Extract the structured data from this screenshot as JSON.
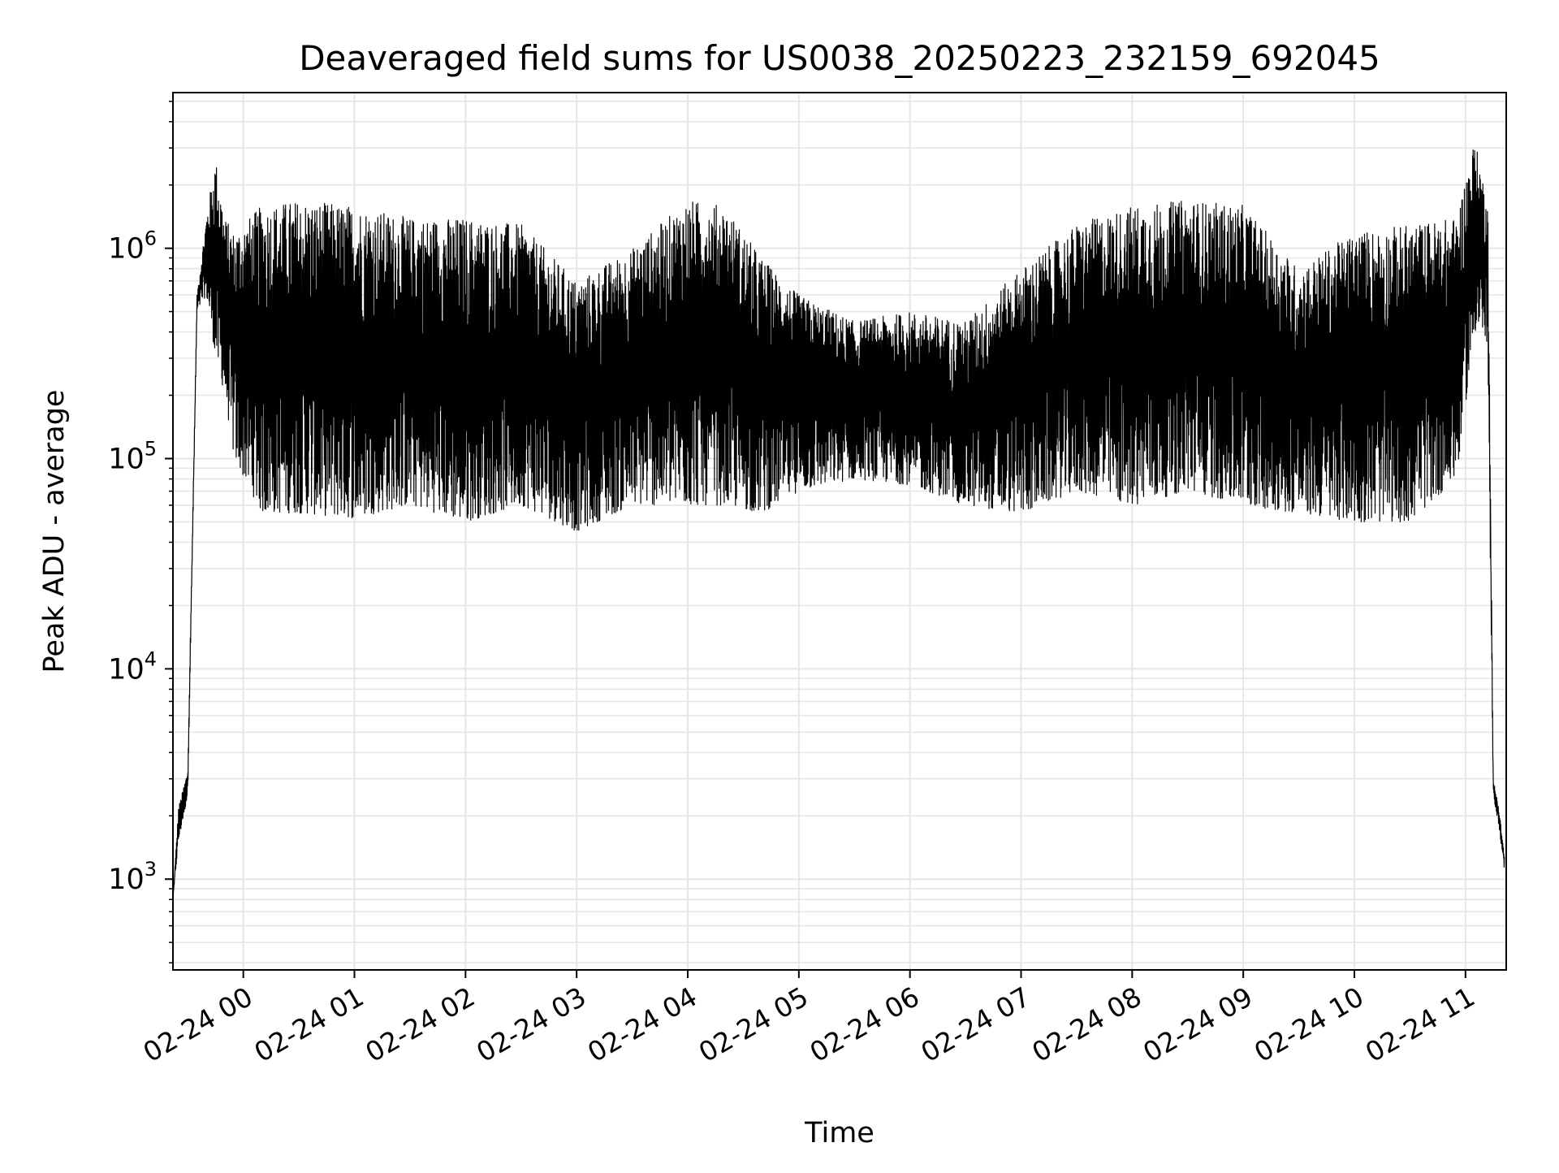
{
  "chart_data": {
    "type": "line",
    "title": "Deaveraged field sums for US0038_20250223_232159_692045",
    "xlabel": "Time",
    "ylabel": "Peak ADU - average",
    "yscale": "log",
    "xlim": [
      "2025-02-23 23:22",
      "2025-02-24 11:22"
    ],
    "ylim": [
      370,
      5500000
    ],
    "grid": true,
    "line_color": "#000000",
    "grid_color": "#e6e6e6",
    "x_ticks": [
      {
        "time": "2025-02-24 00:00",
        "label": "02-24 00"
      },
      {
        "time": "2025-02-24 01:00",
        "label": "02-24 01"
      },
      {
        "time": "2025-02-24 02:00",
        "label": "02-24 02"
      },
      {
        "time": "2025-02-24 03:00",
        "label": "02-24 03"
      },
      {
        "time": "2025-02-24 04:00",
        "label": "02-24 04"
      },
      {
        "time": "2025-02-24 05:00",
        "label": "02-24 05"
      },
      {
        "time": "2025-02-24 06:00",
        "label": "02-24 06"
      },
      {
        "time": "2025-02-24 07:00",
        "label": "02-24 07"
      },
      {
        "time": "2025-02-24 08:00",
        "label": "02-24 08"
      },
      {
        "time": "2025-02-24 09:00",
        "label": "02-24 09"
      },
      {
        "time": "2025-02-24 10:00",
        "label": "02-24 10"
      },
      {
        "time": "2025-02-24 11:00",
        "label": "02-24 11"
      }
    ],
    "y_ticks": [
      {
        "value": 1000,
        "base": "10",
        "exp": "3"
      },
      {
        "value": 10000,
        "base": "10",
        "exp": "4"
      },
      {
        "value": 100000,
        "base": "10",
        "exp": "5"
      },
      {
        "value": 1000000,
        "base": "10",
        "exp": "6"
      }
    ],
    "series": [
      {
        "envelope": {
          "time": [
            "2025-02-23 23:22",
            "2025-02-23 23:25",
            "2025-02-23 23:30",
            "2025-02-23 23:35",
            "2025-02-23 23:40",
            "2025-02-23 23:45",
            "2025-02-23 23:50",
            "2025-02-23 23:55",
            "2025-02-24 00:10",
            "2025-02-24 00:30",
            "2025-02-24 01:00",
            "2025-02-24 01:30",
            "2025-02-24 02:00",
            "2025-02-24 02:30",
            "2025-02-24 03:00",
            "2025-02-24 03:30",
            "2025-02-24 04:00",
            "2025-02-24 04:20",
            "2025-02-24 04:40",
            "2025-02-24 05:00",
            "2025-02-24 05:30",
            "2025-02-24 06:00",
            "2025-02-24 06:30",
            "2025-02-24 07:00",
            "2025-02-24 07:30",
            "2025-02-24 08:00",
            "2025-02-24 08:30",
            "2025-02-24 09:00",
            "2025-02-24 09:30",
            "2025-02-24 10:00",
            "2025-02-24 10:30",
            "2025-02-24 10:55",
            "2025-02-24 11:05",
            "2025-02-24 11:10",
            "2025-02-24 11:12",
            "2025-02-24 11:15",
            "2025-02-24 11:18",
            "2025-02-24 11:21"
          ],
          "high": [
            800,
            2200,
            3300,
            600000,
            1400000,
            2700000,
            1400000,
            1200000,
            1600000,
            1700000,
            1600000,
            1400000,
            1400000,
            1300000,
            700000,
            1000000,
            1700000,
            1600000,
            900000,
            600000,
            450000,
            500000,
            450000,
            800000,
            1300000,
            1600000,
            1700000,
            1600000,
            800000,
            1200000,
            1300000,
            1400000,
            3300000,
            2000000,
            2000000,
            3000,
            2200,
            1300
          ],
          "low": [
            800,
            1500,
            2500,
            500000,
            600000,
            300000,
            200000,
            100000,
            55000,
            55000,
            52000,
            60000,
            50000,
            60000,
            45000,
            60000,
            60000,
            60000,
            55000,
            70000,
            80000,
            75000,
            60000,
            55000,
            70000,
            60000,
            70000,
            60000,
            55000,
            50000,
            50000,
            80000,
            400000,
            400000,
            300000,
            2500,
            1800,
            1100
          ]
        }
      }
    ]
  }
}
